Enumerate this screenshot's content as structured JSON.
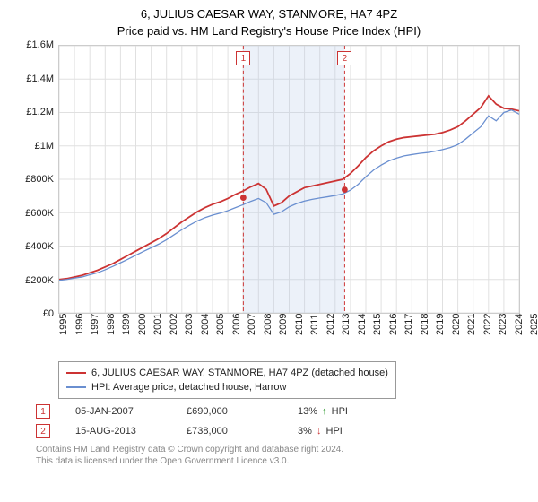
{
  "title": "6, JULIUS CAESAR WAY, STANMORE, HA7 4PZ",
  "subtitle": "Price paid vs. HM Land Registry's House Price Index (HPI)",
  "chart": {
    "type": "line",
    "background_color": "#ffffff",
    "grid_color": "#e0e0e0",
    "axis_color": "#cccccc",
    "label_fontsize": 11,
    "ylim": [
      0,
      1600000
    ],
    "ytick_step": 200000,
    "yticks": [
      "£0",
      "£200K",
      "£400K",
      "£600K",
      "£800K",
      "£1M",
      "£1.2M",
      "£1.4M",
      "£1.6M"
    ],
    "xlim": [
      1995,
      2025
    ],
    "xticks": [
      "1995",
      "1996",
      "1997",
      "1998",
      "1999",
      "2000",
      "2001",
      "2002",
      "2003",
      "2004",
      "2005",
      "2006",
      "2007",
      "2008",
      "2009",
      "2010",
      "2011",
      "2012",
      "2013",
      "2014",
      "2015",
      "2016",
      "2017",
      "2018",
      "2019",
      "2020",
      "2021",
      "2022",
      "2023",
      "2024",
      "2025"
    ],
    "shaded_region": {
      "x_start": 2007.01,
      "x_end": 2013.62,
      "fill": "rgba(180,200,230,0.25)",
      "border": "#cc3333",
      "border_dash": "4,3"
    },
    "marker_labels": [
      {
        "text": "1",
        "x": 2007.01
      },
      {
        "text": "2",
        "x": 2013.62
      }
    ],
    "series": [
      {
        "name": "property",
        "color": "#cc3333",
        "line_width": 1.8,
        "x": [
          1995,
          1995.5,
          1996,
          1996.5,
          1997,
          1997.5,
          1998,
          1998.5,
          1999,
          1999.5,
          2000,
          2000.5,
          2001,
          2001.5,
          2002,
          2002.5,
          2003,
          2003.5,
          2004,
          2004.5,
          2005,
          2005.5,
          2006,
          2006.5,
          2007,
          2007.5,
          2008,
          2008.5,
          2009,
          2009.5,
          2010,
          2010.5,
          2011,
          2011.5,
          2012,
          2012.5,
          2013,
          2013.5,
          2014,
          2014.5,
          2015,
          2015.5,
          2016,
          2016.5,
          2017,
          2017.5,
          2018,
          2018.5,
          2019,
          2019.5,
          2020,
          2020.5,
          2021,
          2021.5,
          2022,
          2022.5,
          2023,
          2023.5,
          2024,
          2024.5,
          2025
        ],
        "y": [
          200000,
          205000,
          215000,
          225000,
          240000,
          255000,
          275000,
          295000,
          320000,
          345000,
          370000,
          395000,
          420000,
          445000,
          475000,
          510000,
          545000,
          575000,
          605000,
          630000,
          650000,
          665000,
          685000,
          710000,
          730000,
          755000,
          775000,
          740000,
          640000,
          660000,
          700000,
          725000,
          750000,
          760000,
          770000,
          780000,
          790000,
          800000,
          835000,
          880000,
          930000,
          970000,
          1000000,
          1025000,
          1040000,
          1050000,
          1055000,
          1060000,
          1065000,
          1070000,
          1080000,
          1095000,
          1115000,
          1150000,
          1190000,
          1230000,
          1300000,
          1250000,
          1225000,
          1220000,
          1210000
        ]
      },
      {
        "name": "hpi",
        "color": "#6a8fd0",
        "line_width": 1.3,
        "x": [
          1995,
          1995.5,
          1996,
          1996.5,
          1997,
          1997.5,
          1998,
          1998.5,
          1999,
          1999.5,
          2000,
          2000.5,
          2001,
          2001.5,
          2002,
          2002.5,
          2003,
          2003.5,
          2004,
          2004.5,
          2005,
          2005.5,
          2006,
          2006.5,
          2007,
          2007.5,
          2008,
          2008.5,
          2009,
          2009.5,
          2010,
          2010.5,
          2011,
          2011.5,
          2012,
          2012.5,
          2013,
          2013.5,
          2014,
          2014.5,
          2015,
          2015.5,
          2016,
          2016.5,
          2017,
          2017.5,
          2018,
          2018.5,
          2019,
          2019.5,
          2020,
          2020.5,
          2021,
          2021.5,
          2022,
          2022.5,
          2023,
          2023.5,
          2024,
          2024.5,
          2025
        ],
        "y": [
          195000,
          200000,
          208000,
          215000,
          228000,
          240000,
          258000,
          278000,
          300000,
          322000,
          345000,
          368000,
          390000,
          412000,
          438000,
          468000,
          498000,
          525000,
          550000,
          570000,
          585000,
          597000,
          612000,
          630000,
          648000,
          668000,
          685000,
          660000,
          590000,
          605000,
          635000,
          655000,
          670000,
          680000,
          688000,
          695000,
          703000,
          712000,
          735000,
          770000,
          815000,
          855000,
          885000,
          910000,
          927000,
          940000,
          948000,
          955000,
          960000,
          968000,
          978000,
          990000,
          1008000,
          1040000,
          1078000,
          1115000,
          1180000,
          1150000,
          1200000,
          1215000,
          1190000
        ]
      }
    ],
    "points": [
      {
        "x": 2007.01,
        "y": 690000,
        "color": "#cc3333",
        "r": 3.5
      },
      {
        "x": 2013.62,
        "y": 738000,
        "color": "#cc3333",
        "r": 3.5
      }
    ]
  },
  "legend": {
    "border_color": "#999999",
    "items": [
      {
        "label": "6, JULIUS CAESAR WAY, STANMORE, HA7 4PZ (detached house)",
        "color": "#cc3333"
      },
      {
        "label": "HPI: Average price, detached house, Harrow",
        "color": "#6a8fd0"
      }
    ]
  },
  "transactions": [
    {
      "marker": "1",
      "date": "05-JAN-2007",
      "price": "£690,000",
      "pct": "13%",
      "arrow": "↑",
      "arrow_color": "#1a8f1a",
      "suffix": "HPI"
    },
    {
      "marker": "2",
      "date": "15-AUG-2013",
      "price": "£738,000",
      "pct": "3%",
      "arrow": "↓",
      "arrow_color": "#cc3333",
      "suffix": "HPI"
    }
  ],
  "footer": {
    "line1": "Contains HM Land Registry data © Crown copyright and database right 2024.",
    "line2": "This data is licensed under the Open Government Licence v3.0."
  }
}
